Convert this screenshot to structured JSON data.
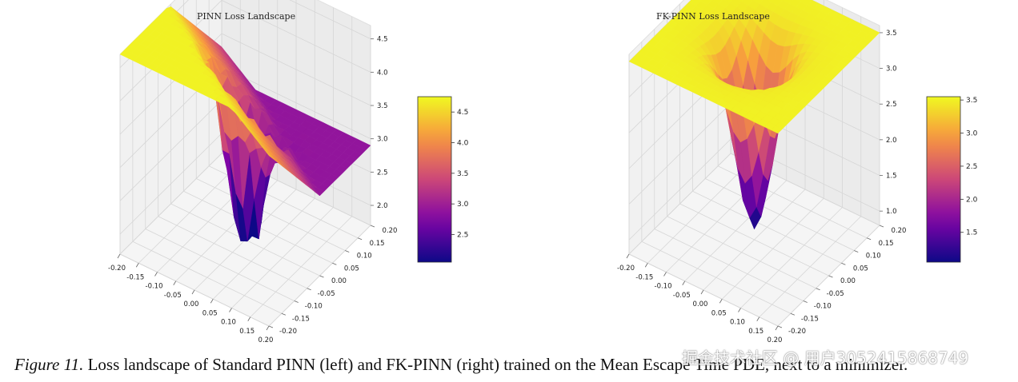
{
  "figure": {
    "caption_label": "Figure 11.",
    "caption_text": " Loss landscape of Standard PINN (left) and FK-PINN (right) trained on the Mean Escape Time PDE, next to a minimizer.",
    "watermark": "掘金技术社区 @ 用户3052415868749"
  },
  "colors": {
    "colormap": "plasma",
    "low": "#3a2d9c",
    "mid": "#c9417e",
    "high": "#f7e93d",
    "grid": "#d8d8d8",
    "pane": "#f2f2f2"
  },
  "chart_data": [
    {
      "type": "surface",
      "title": "PINN Loss Landscape",
      "x_ticks": [
        "-0.20",
        "-0.15",
        "-0.10",
        "-0.05",
        "0.00",
        "0.05",
        "0.10",
        "0.15",
        "0.20"
      ],
      "y_ticks": [
        "-0.20",
        "-0.15",
        "-0.10",
        "-0.05",
        "0.00",
        "0.05",
        "0.10",
        "0.15",
        "0.20"
      ],
      "z_ticks": [
        "2.0",
        "2.5",
        "3.0",
        "3.5",
        "4.0",
        "4.5"
      ],
      "colorbar_ticks": [
        "2.5",
        "3.0",
        "3.5",
        "4.0",
        "4.5"
      ],
      "xlim": [
        -0.2,
        0.2
      ],
      "ylim": [
        -0.2,
        0.2
      ],
      "zlim": [
        1.7,
        4.7
      ],
      "colorbar_range": [
        2.05,
        4.75
      ],
      "surface_shape": "sharp jagged valley at the center, rising toward a corner",
      "z_min": 1.75,
      "z_max": 4.7
    },
    {
      "type": "surface",
      "title": "FK-PINN Loss Landscape",
      "x_ticks": [
        "-0.20",
        "-0.15",
        "-0.10",
        "-0.05",
        "0.00",
        "0.05",
        "0.10",
        "0.15",
        "0.20"
      ],
      "y_ticks": [
        "-0.20",
        "-0.15",
        "-0.10",
        "-0.05",
        "0.00",
        "0.05",
        "0.10",
        "0.15",
        "0.20"
      ],
      "z_ticks": [
        "1.0",
        "1.5",
        "2.0",
        "2.5",
        "3.0",
        "3.5"
      ],
      "colorbar_ticks": [
        "1.5",
        "2.0",
        "2.5",
        "3.0",
        "3.5"
      ],
      "xlim": [
        -0.2,
        0.2
      ],
      "ylim": [
        -0.2,
        0.2
      ],
      "zlim": [
        0.8,
        3.6
      ],
      "colorbar_range": [
        1.05,
        3.55
      ],
      "surface_shape": "smooth funnel-shaped bowl with a single minimum at the center",
      "z_min": 0.9,
      "z_max": 3.5
    }
  ]
}
